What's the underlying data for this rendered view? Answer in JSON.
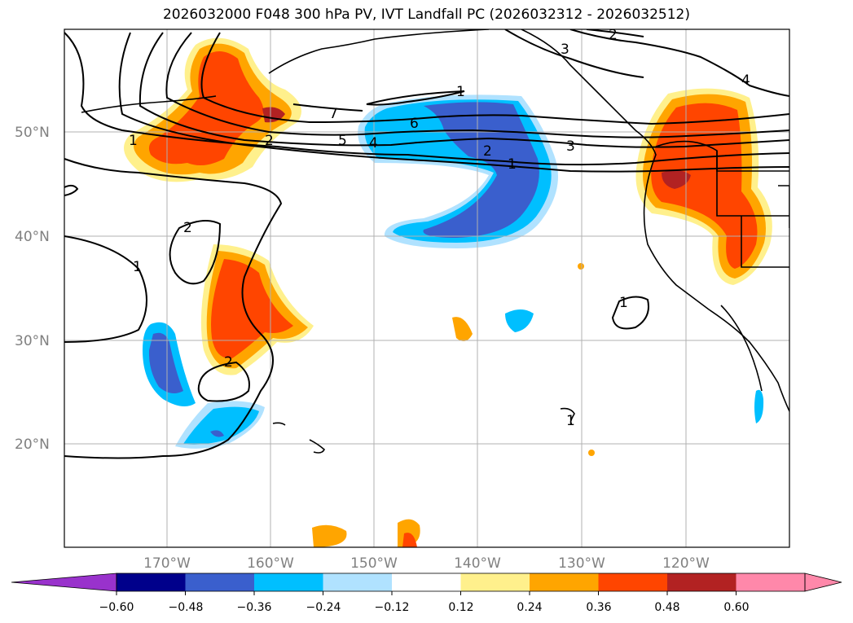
{
  "title": "2026032000 F048 300 hPa PV, IVT Landfall PC (2026032312 - 2026032512)",
  "map": {
    "lat_labels": [
      "50°N",
      "40°N",
      "30°N",
      "20°N"
    ],
    "lon_labels": [
      "170°W",
      "160°W",
      "150°W",
      "140°W",
      "130°W",
      "120°W"
    ],
    "contour_labels": [
      "1",
      "2",
      "2",
      "1",
      "7",
      "5",
      "4",
      "6",
      "2",
      "1",
      "3",
      "3",
      "4",
      "2",
      "1",
      "1",
      "2",
      "1"
    ]
  },
  "colorbar": {
    "ticks": [
      "−0.60",
      "−0.48",
      "−0.36",
      "−0.24",
      "−0.12",
      "0.12",
      "0.24",
      "0.36",
      "0.48",
      "0.60"
    ],
    "colors": [
      "#9932cc",
      "#00008b",
      "#3a5fcd",
      "#00bfff",
      "#b0e2ff",
      "#ffffff",
      "#fff08c",
      "#ffa500",
      "#ff4500",
      "#b22222",
      "#ff88aa",
      "#ff88aa"
    ]
  }
}
